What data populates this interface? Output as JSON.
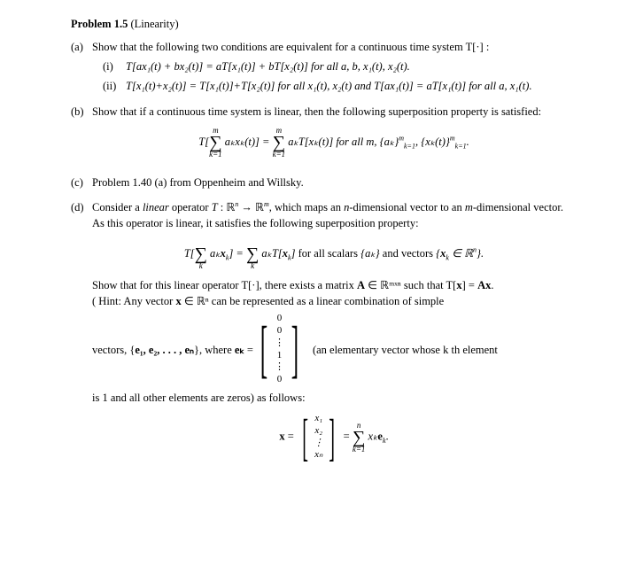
{
  "title_bold": "Problem 1.5",
  "title_rest": "(Linearity)",
  "parts": {
    "a": {
      "label": "(a)",
      "intro": "Show that the following two conditions are equivalent for a continuous time system T[·] :",
      "i_label": "(i)",
      "i_text": "T[ax₁(t) + bx₂(t)] = aT[x₁(t)] + bT[x₂(t)] for all a, b, x₁(t), x₂(t).",
      "ii_label": "(ii)",
      "ii_text": "T[x₁(t)+x₂(t)] = T[x₁(t)]+T[x₂(t)] for all x₁(t), x₂(t) and T[ax₁(t)] = aT[x₁(t)] for all a, x₁(t)."
    },
    "b": {
      "label": "(b)",
      "intro": "Show that if a continuous time system is linear, then the following superposition property is satisfied:",
      "eq_left": "T[",
      "eq_sum_top": "m",
      "eq_sum_bot": "k=1",
      "eq_mid1": "aₖxₖ(t)] = ",
      "eq_mid2": "aₖT[xₖ(t)] for all m, {aₖ}",
      "eq_sup1": "m",
      "eq_sub1": "k=1",
      "eq_end": ", {xₖ(t)}",
      "eq_sup2": "m",
      "eq_sub2": "k=1",
      "eq_dot": "."
    },
    "c": {
      "label": "(c)",
      "text": "Problem 1.40 (a) from Oppenheim and Willsky."
    },
    "d": {
      "label": "(d)",
      "intro": "Consider a linear operator T : ℝⁿ → ℝᵐ, which maps an n-dimensional vector to an m-dimensional vector. As this operator is linear, it satisfies the following superposition property:",
      "eq_d1": "T[",
      "eq_d_sum_bot": "k",
      "eq_d_mid": "aₖxₖ] = ",
      "eq_d_end": "aₖT[xₖ] for all scalars {aₖ} and vectors {xₖ  ∈ ℝⁿ}.",
      "para2a": "Show that for this linear operator T[·], there exists a matrix ",
      "para2b": "A",
      "para2c": " ∈ ℝᵐˣⁿ such that T[",
      "para2d": "x",
      "para2e": "] = ",
      "para2f": "Ax",
      "para2g": ".",
      "hint1": "( Hint: Any vector ",
      "hint2": "x",
      "hint3": " ∈ ℝⁿ can be represented as a linear combination of simple",
      "vectors_label": "vectors, {",
      "e_list": "e₁, e₂, . . . , eₙ",
      "vectors_mid": "}, where ",
      "ek": "eₖ",
      "vec_eq": " = ",
      "col_items": [
        "0",
        "0",
        "⋮",
        "1",
        "⋮",
        "0"
      ],
      "elem_desc": "(an elementary vector whose k th element",
      "line_after": "is 1 and all other elements are zeros) as follows:",
      "x_eq": "x",
      "x_col": [
        "x₁",
        "x₂",
        "⋮",
        "xₙ"
      ],
      "eq_mid_x": " = ",
      "sum_n_top": "n",
      "sum_n_bot": "k=1",
      "xkek": "xₖeₖ",
      "dot": "."
    }
  }
}
